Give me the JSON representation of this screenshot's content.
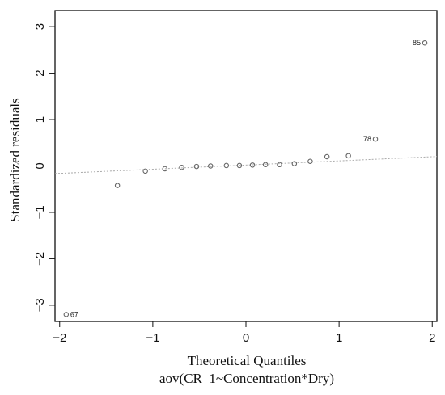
{
  "chart_data": {
    "type": "scatter",
    "title": "",
    "xlabel": "Theoretical Quantiles",
    "subtitle": "aov(CR_1~Concentration*Dry)",
    "ylabel": "Standardized residuals",
    "xlim": [
      -2.05,
      2.05
    ],
    "ylim": [
      -3.35,
      3.35
    ],
    "xticks": [
      -2,
      -1,
      0,
      1,
      2
    ],
    "yticks": [
      -3,
      -2,
      -1,
      0,
      1,
      2,
      3
    ],
    "xtick_labels": [
      "−2",
      "−1",
      "0",
      "1",
      "2"
    ],
    "ytick_labels": [
      "−3",
      "−2",
      "−1",
      "0",
      "1",
      "2",
      "3"
    ],
    "grid": false,
    "reference_line": {
      "intercept": 0.02,
      "slope": 0.09
    },
    "points": [
      {
        "x": -1.93,
        "y": -3.2,
        "label": "67"
      },
      {
        "x": -1.38,
        "y": -0.42
      },
      {
        "x": -1.08,
        "y": -0.11
      },
      {
        "x": -0.87,
        "y": -0.06
      },
      {
        "x": -0.69,
        "y": -0.03
      },
      {
        "x": -0.53,
        "y": -0.01
      },
      {
        "x": -0.38,
        "y": 0.0
      },
      {
        "x": -0.21,
        "y": 0.01
      },
      {
        "x": -0.07,
        "y": 0.01
      },
      {
        "x": 0.07,
        "y": 0.02
      },
      {
        "x": 0.21,
        "y": 0.03
      },
      {
        "x": 0.36,
        "y": 0.03
      },
      {
        "x": 0.52,
        "y": 0.05
      },
      {
        "x": 0.69,
        "y": 0.1
      },
      {
        "x": 0.87,
        "y": 0.2
      },
      {
        "x": 1.1,
        "y": 0.22
      },
      {
        "x": 1.39,
        "y": 0.58,
        "label": "78"
      },
      {
        "x": 1.92,
        "y": 2.65,
        "label": "85"
      }
    ],
    "colors": {
      "points": "#666666",
      "reference_line": "#aaaaaa",
      "frame": "#111111"
    }
  }
}
